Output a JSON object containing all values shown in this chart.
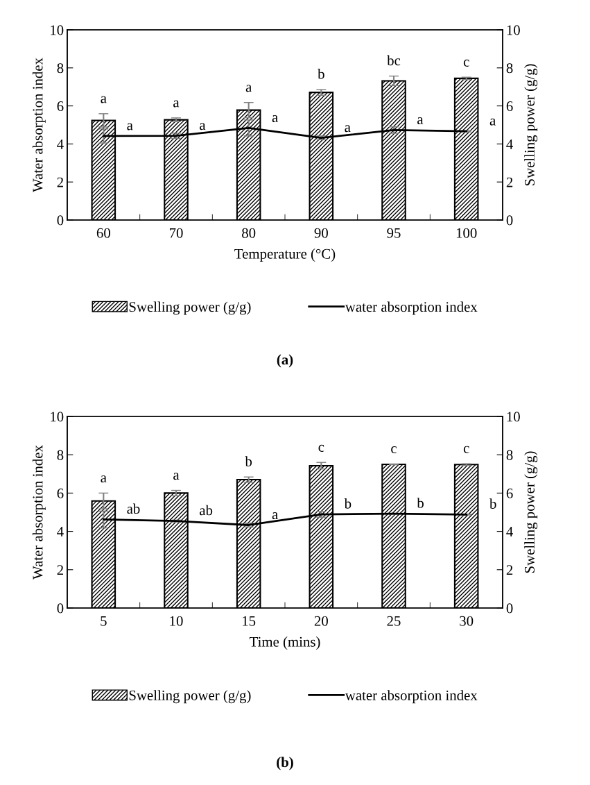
{
  "chart_data": [
    {
      "type": "bar",
      "title": "(a)",
      "xlabel": "Temperature (°C)",
      "ylabel": "Water absorption index",
      "y2label": "Swelling power (g/g)",
      "categories": [
        "60",
        "70",
        "80",
        "90",
        "95",
        "100"
      ],
      "series": [
        {
          "name": "Swelling power (g/g)",
          "axis": "y2",
          "color": "#000000",
          "values": [
            5.24,
            5.27,
            5.78,
            6.71,
            7.32,
            7.45
          ],
          "errors": [
            0.35,
            0.1,
            0.4,
            0.15,
            0.25,
            0.06
          ]
        },
        {
          "name": "water absorption index",
          "type": "line",
          "axis": "y",
          "color": "#000000",
          "values": [
            4.42,
            4.43,
            4.84,
            4.32,
            4.73,
            4.67
          ],
          "errors": [
            0.37,
            0.14,
            0.42,
            0.1,
            0.17,
            0.03
          ]
        }
      ],
      "ylim": [
        0,
        10
      ],
      "yticks": [
        0,
        2,
        4,
        6,
        8,
        10
      ],
      "y2lim": [
        0,
        10
      ],
      "y2ticks": [
        0,
        2,
        4,
        6,
        8,
        10
      ],
      "grid": false,
      "legend": "bottom",
      "marker": "none",
      "line_style": "solid",
      "annotations": [
        {
          "text": "a",
          "x": "60",
          "y": 5.59
        },
        {
          "text": "a",
          "x": "70",
          "y": 5.37
        },
        {
          "text": "a",
          "x": "80",
          "y": 6.18
        },
        {
          "text": "b",
          "x": "90",
          "y": 6.86
        },
        {
          "text": "bc",
          "x": "95",
          "y": 7.57
        },
        {
          "text": "c",
          "x": "100",
          "y": 7.51
        },
        {
          "text": "a",
          "x": "60",
          "y": 4.42
        },
        {
          "text": "a",
          "x": "70",
          "y": 4.43
        },
        {
          "text": "a",
          "x": "80",
          "y": 4.84
        },
        {
          "text": "a",
          "x": "90",
          "y": 4.32
        },
        {
          "text": "a",
          "x": "95",
          "y": 4.73
        },
        {
          "text": "a",
          "x": "100",
          "y": 4.67
        }
      ]
    },
    {
      "type": "bar",
      "title": "(b)",
      "xlabel": "Time (mins)",
      "ylabel": "Water absorption index",
      "y2label": "Swelling power (g/g)",
      "categories": [
        "5",
        "10",
        "15",
        "20",
        "25",
        "30"
      ],
      "series": [
        {
          "name": "Swelling power (g/g)",
          "axis": "y2",
          "color": "#000000",
          "values": [
            5.59,
            6.0,
            6.7,
            7.43,
            7.5,
            7.49
          ],
          "errors": [
            0.41,
            0.14,
            0.14,
            0.17,
            0.02,
            0.04
          ]
        },
        {
          "name": "water absorption index",
          "type": "line",
          "axis": "y",
          "color": "#000000",
          "values": [
            4.62,
            4.54,
            4.33,
            4.89,
            4.92,
            4.88
          ],
          "errors": [
            0.44,
            0.05,
            0.1,
            0.15,
            0.02,
            0.02
          ]
        }
      ],
      "ylim": [
        0,
        10
      ],
      "yticks": [
        0,
        2,
        4,
        6,
        8,
        10
      ],
      "y2lim": [
        0,
        10
      ],
      "y2ticks": [
        0,
        2,
        4,
        6,
        8,
        10
      ],
      "grid": false,
      "legend": "bottom",
      "marker": "none",
      "line_style": "solid",
      "annotations": [
        {
          "text": "a",
          "x": "5",
          "y": 6.0
        },
        {
          "text": "a",
          "x": "10",
          "y": 6.14
        },
        {
          "text": "b",
          "x": "15",
          "y": 6.84
        },
        {
          "text": "c",
          "x": "20",
          "y": 7.6
        },
        {
          "text": "c",
          "x": "25",
          "y": 7.52
        },
        {
          "text": "c",
          "x": "30",
          "y": 7.53
        },
        {
          "text": "ab",
          "x": "5",
          "y": 4.62
        },
        {
          "text": "ab",
          "x": "10",
          "y": 4.54
        },
        {
          "text": "a",
          "x": "15",
          "y": 4.33
        },
        {
          "text": "b",
          "x": "20",
          "y": 4.89
        },
        {
          "text": "b",
          "x": "25",
          "y": 4.92
        },
        {
          "text": "b",
          "x": "30",
          "y": 4.88
        }
      ]
    }
  ]
}
